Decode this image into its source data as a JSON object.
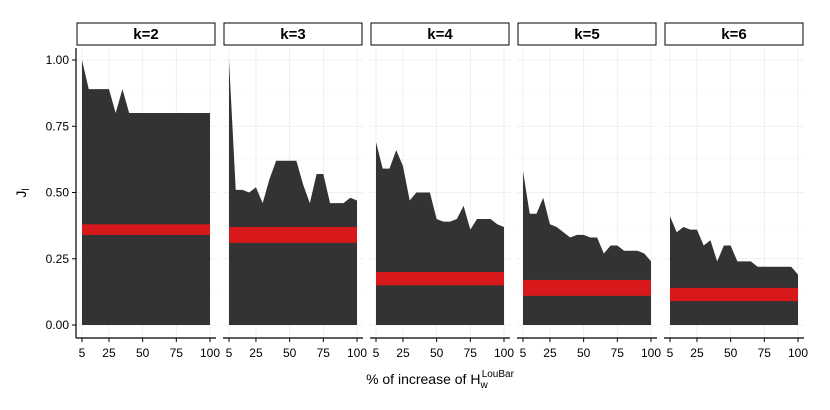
{
  "chart_data": {
    "type": "area",
    "xlabel_main": "% of increase of H",
    "xlabel_sub": "w",
    "xlabel_sup": "LouBar",
    "ylabel_main": "J",
    "ylabel_sub": "l",
    "xlim": [
      0,
      100
    ],
    "ylim": [
      0,
      1
    ],
    "x_ticks": [
      "5",
      "25",
      "50",
      "75",
      "100"
    ],
    "x_tick_values": [
      5,
      25,
      50,
      75,
      100
    ],
    "y_ticks": [
      "0.00",
      "0.25",
      "0.50",
      "0.75",
      "1.00"
    ],
    "y_tick_values": [
      0,
      0.25,
      0.5,
      0.75,
      1.0
    ],
    "grid": true,
    "area_color": "#333333",
    "band_color": "#d7191c",
    "x": [
      5,
      10,
      15,
      20,
      25,
      30,
      35,
      40,
      45,
      50,
      55,
      60,
      65,
      70,
      75,
      80,
      85,
      90,
      95,
      100
    ],
    "panels": [
      {
        "label": "k=2",
        "values": [
          1.0,
          0.89,
          0.89,
          0.89,
          0.89,
          0.8,
          0.89,
          0.8,
          0.8,
          0.8,
          0.8,
          0.8,
          0.8,
          0.8,
          0.8,
          0.8,
          0.8,
          0.8,
          0.8,
          0.8
        ],
        "band": [
          0.34,
          0.38
        ]
      },
      {
        "label": "k=3",
        "values": [
          1.0,
          0.51,
          0.51,
          0.5,
          0.52,
          0.46,
          0.55,
          0.62,
          0.62,
          0.62,
          0.62,
          0.53,
          0.46,
          0.57,
          0.57,
          0.46,
          0.46,
          0.46,
          0.48,
          0.47
        ],
        "band": [
          0.31,
          0.37
        ]
      },
      {
        "label": "k=4",
        "values": [
          0.69,
          0.59,
          0.59,
          0.66,
          0.6,
          0.47,
          0.5,
          0.5,
          0.5,
          0.4,
          0.39,
          0.39,
          0.4,
          0.45,
          0.36,
          0.4,
          0.4,
          0.4,
          0.38,
          0.37
        ],
        "band": [
          0.15,
          0.2
        ]
      },
      {
        "label": "k=5",
        "values": [
          0.58,
          0.42,
          0.42,
          0.48,
          0.38,
          0.37,
          0.35,
          0.33,
          0.34,
          0.34,
          0.33,
          0.33,
          0.27,
          0.3,
          0.3,
          0.28,
          0.28,
          0.28,
          0.27,
          0.24
        ],
        "band": [
          0.11,
          0.17
        ]
      },
      {
        "label": "k=6",
        "values": [
          0.41,
          0.35,
          0.37,
          0.36,
          0.36,
          0.3,
          0.32,
          0.24,
          0.3,
          0.3,
          0.24,
          0.24,
          0.24,
          0.22,
          0.22,
          0.22,
          0.22,
          0.22,
          0.22,
          0.19
        ],
        "band": [
          0.09,
          0.14
        ]
      }
    ]
  }
}
